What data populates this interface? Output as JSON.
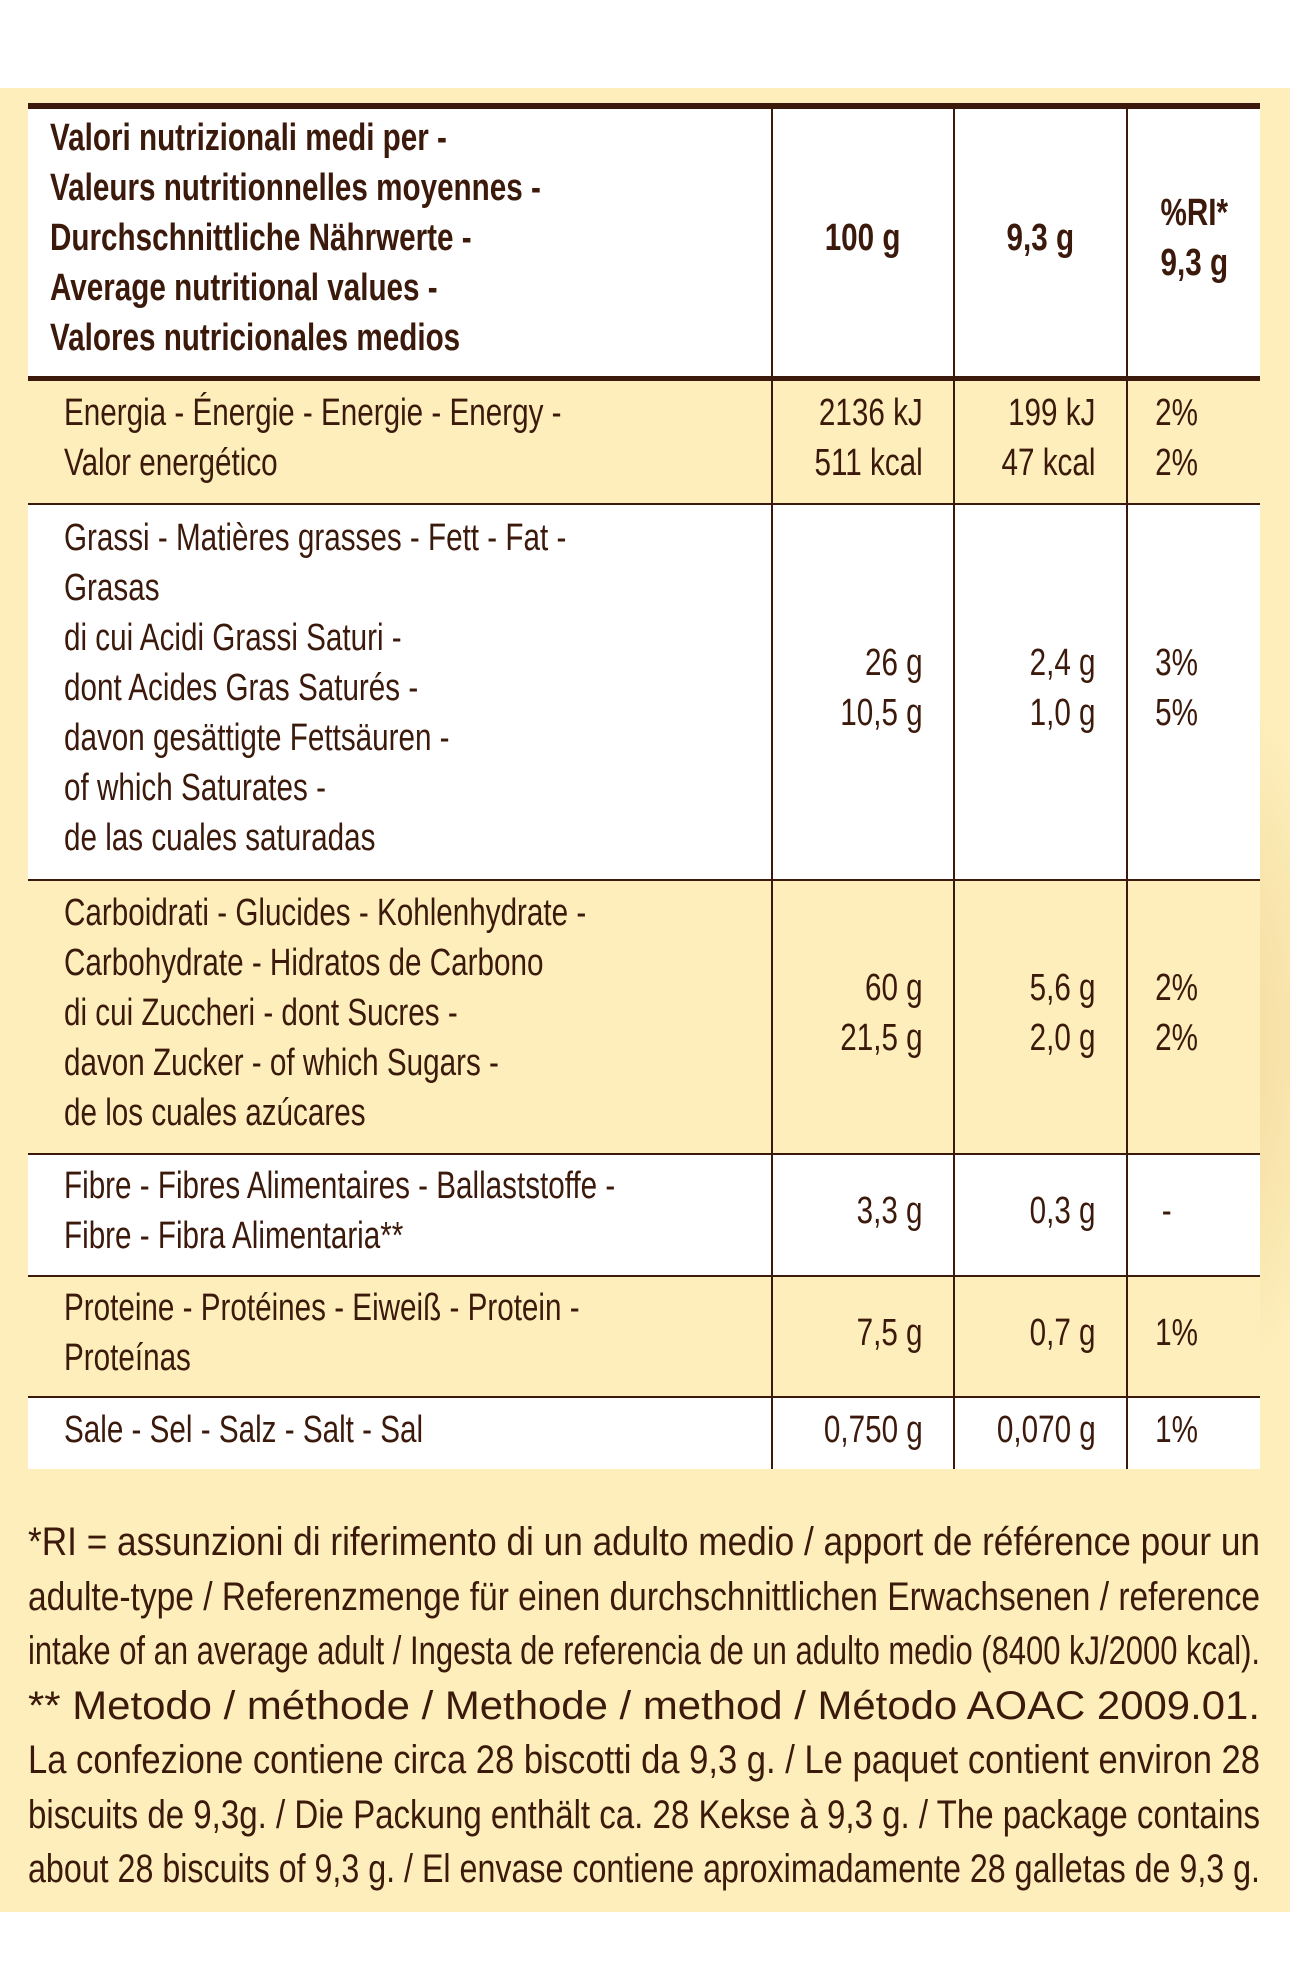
{
  "header": {
    "label": "Valori nutrizionali medi per -\nValeurs nutritionnelles moyennes -\nDurchschnittliche Nährwerte -\nAverage nutritional values -\nValores nutricionales medios",
    "col_100g": "100 g",
    "col_portion": "9,3 g",
    "col_ri": "%RI*\n9,3 g"
  },
  "rows": [
    {
      "label": "Energia - Énergie - Energie - Energy -\nValor energético",
      "per100": "2136 kJ\n511 kcal",
      "portion": "199 kJ\n47 kcal",
      "ri": "2%\n2%"
    },
    {
      "label": "Grassi - Matières grasses - Fett - Fat -\nGrasas\ndi cui Acidi Grassi Saturi -\ndont Acides Gras Saturés -\ndavon gesättigte Fettsäuren -\nof which Saturates -\nde las cuales saturadas",
      "per100": "26 g\n10,5 g",
      "portion": "2,4 g\n1,0 g",
      "ri": "3%\n5%"
    },
    {
      "label": "Carboidrati - Glucides - Kohlenhydrate -\nCarbohydrate - Hidratos de Carbono\ndi cui Zuccheri - dont Sucres -\ndavon Zucker - of which Sugars -\nde los cuales azúcares",
      "per100": "60 g\n21,5 g",
      "portion": "5,6 g\n2,0 g",
      "ri": "2%\n2%"
    },
    {
      "label": "Fibre - Fibres Alimentaires - Ballaststoffe -\nFibre - Fibra Alimentaria**",
      "per100": "3,3 g",
      "portion": "0,3 g",
      "ri": "-"
    },
    {
      "label": "Proteine - Protéines - Eiweiß - Protein -\nProteínas",
      "per100": "7,5 g",
      "portion": "0,7 g",
      "ri": "1%"
    },
    {
      "label": "Sale - Sel - Salz - Salt - Sal",
      "per100": "0,750 g",
      "portion": "0,070 g",
      "ri": "1%"
    }
  ],
  "footer": [
    "*RI = assunzioni di riferimento di un adulto medio / apport de référence pour un",
    "adulte-type / Referenzmenge für einen durchschnittlichen Erwachsenen / reference",
    "intake of an average adult / Ingesta de referencia de un adulto medio (8400 kJ/2000 kcal).",
    "** Metodo / méthode / Methode / method / Método AOAC 2009.01.",
    "La confezione contiene circa 28 biscotti da 9,3 g. / Le paquet contient environ 28",
    "biscuits de 9,3g. / Die Packung enthält ca. 28 Kekse à 9,3 g. / The package contains",
    "about 28 biscuits of 9,3 g. / El envase contiene aproximadamente 28 galletas de 9,3 g."
  ],
  "colors": {
    "background": "#fdeebb",
    "text": "#3b1a0c",
    "row_alt": "#ffffff"
  }
}
